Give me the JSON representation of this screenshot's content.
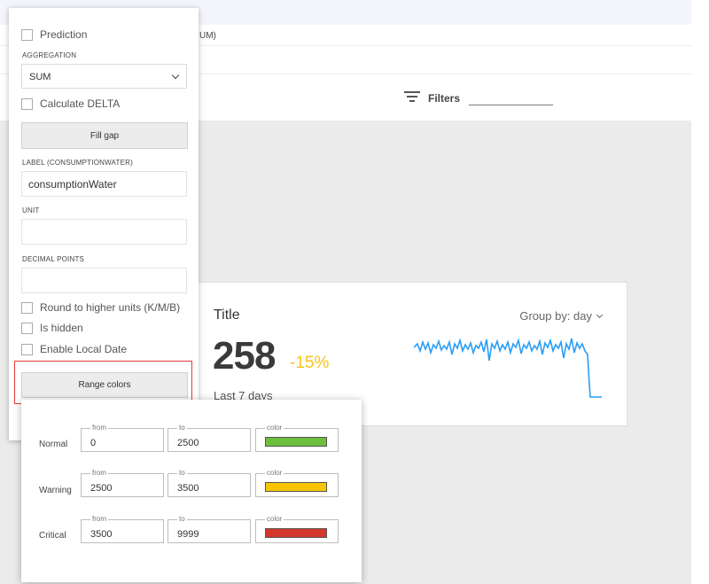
{
  "page": {
    "crumb_text": "UM)",
    "filters_label": "Filters"
  },
  "widget": {
    "title": "Title",
    "group_by": "Group by: day",
    "value": "258",
    "delta": "-15%",
    "period": "Last 7 days",
    "accent_color": "#f5c518",
    "line_color": "#2a9df4"
  },
  "panel": {
    "prediction_label": "Prediction",
    "prediction_checked": false,
    "aggregation_label": "AGGREGATION",
    "aggregation_value": "SUM",
    "calc_delta_label": "Calculate DELTA",
    "calc_delta_checked": false,
    "fill_gap_label": "Fill gap",
    "label_label": "LABEL (consumptionWater)",
    "label_value": "consumptionWater",
    "unit_label": "UNIT",
    "unit_value": "",
    "decimal_label": "DECIMAL POINTS",
    "decimal_value": "",
    "round_label": "Round to higher units (K/M/B)",
    "hidden_label": "Is hidden",
    "local_date_label": "Enable Local Date",
    "range_colors_label": "Range colors",
    "highlight_color": "#e23a3a"
  },
  "range_colors": {
    "from_legend": "from",
    "to_legend": "to",
    "color_legend": "color",
    "rows": [
      {
        "name": "Normal",
        "from": "0",
        "to": "2500",
        "color": "#6cbf3c"
      },
      {
        "name": "Warning",
        "from": "2500",
        "to": "3500",
        "color": "#f7c600"
      },
      {
        "name": "Critical",
        "from": "3500",
        "to": "9999",
        "color": "#d4372c"
      }
    ]
  }
}
